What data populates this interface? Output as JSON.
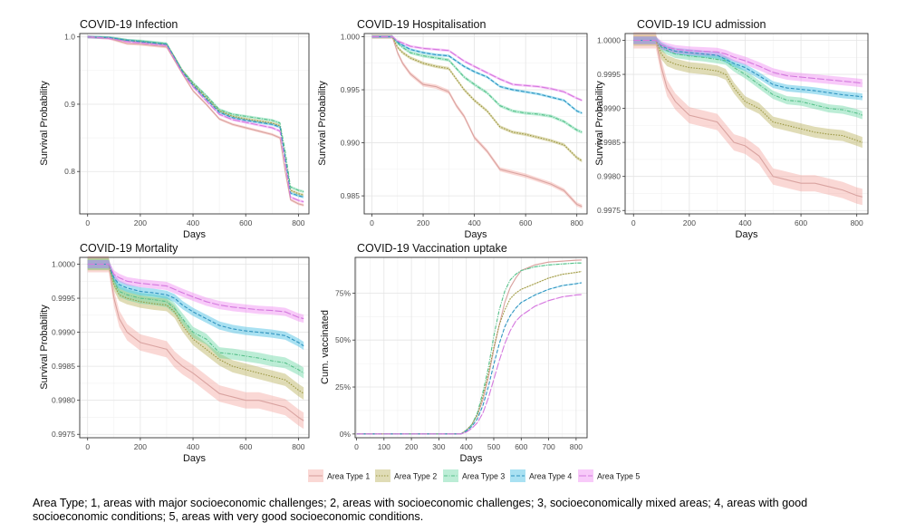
{
  "legend_title": "",
  "legend_labels": [
    "Area Type 1",
    "Area Type 2",
    "Area Type 3",
    "Area Type 4",
    "Area Type 5"
  ],
  "colors": {
    "area1": "#f3a29a",
    "area2": "#b5ac52",
    "area3": "#5fd59e",
    "area4": "#33b7e1",
    "area5": "#ef81f0",
    "line1": "#d9a3a0",
    "line2": "#9a9640",
    "line3": "#57c08a",
    "line4": "#2f93bf",
    "line5": "#d479de"
  },
  "caption": "Area Type; 1, areas with major socioeconomic challenges; 2, areas with socioeconomic challenges; 3, socioeconomically mixed areas; 4, areas with good socioeconomic conditions; 5, areas with very good socioeconomic conditions.",
  "chart_data": [
    {
      "id": "infection",
      "type": "line",
      "title": "COVID-19 Infection",
      "xlabel": "Days",
      "ylabel": "Survival Probability",
      "xlim": [
        -30,
        840
      ],
      "ylim": [
        0.737,
        1.005
      ],
      "xticks": [
        0,
        200,
        400,
        600,
        800
      ],
      "yticks": [
        0.8,
        0.9,
        1.0
      ],
      "ytick_labels": [
        "0.8",
        "0.9",
        "1.0"
      ],
      "x": [
        0,
        80,
        150,
        200,
        250,
        300,
        330,
        360,
        400,
        450,
        500,
        550,
        600,
        650,
        700,
        730,
        750,
        770,
        800,
        820
      ],
      "series": [
        {
          "name": "Area Type 1",
          "values": [
            1.0,
            0.998,
            0.99,
            0.989,
            0.987,
            0.985,
            0.965,
            0.945,
            0.92,
            0.9,
            0.878,
            0.87,
            0.865,
            0.86,
            0.855,
            0.85,
            0.8,
            0.758,
            0.752,
            0.75
          ],
          "band": 0.002
        },
        {
          "name": "Area Type 2",
          "values": [
            1.0,
            0.999,
            0.995,
            0.993,
            0.991,
            0.989,
            0.97,
            0.95,
            0.93,
            0.91,
            0.89,
            0.882,
            0.878,
            0.875,
            0.872,
            0.868,
            0.82,
            0.772,
            0.767,
            0.765
          ],
          "band": 0.002
        },
        {
          "name": "Area Type 3",
          "values": [
            1.0,
            0.999,
            0.995,
            0.994,
            0.992,
            0.99,
            0.97,
            0.95,
            0.932,
            0.913,
            0.892,
            0.885,
            0.882,
            0.879,
            0.876,
            0.872,
            0.83,
            0.777,
            0.772,
            0.77
          ],
          "band": 0.002
        },
        {
          "name": "Area Type 4",
          "values": [
            1.0,
            0.999,
            0.995,
            0.993,
            0.991,
            0.989,
            0.969,
            0.948,
            0.928,
            0.908,
            0.888,
            0.88,
            0.876,
            0.873,
            0.87,
            0.866,
            0.82,
            0.768,
            0.764,
            0.762
          ],
          "band": 0.002
        },
        {
          "name": "Area Type 5",
          "values": [
            1.0,
            0.998,
            0.993,
            0.991,
            0.989,
            0.987,
            0.967,
            0.946,
            0.926,
            0.905,
            0.885,
            0.877,
            0.873,
            0.869,
            0.865,
            0.86,
            0.812,
            0.762,
            0.757,
            0.755
          ],
          "band": 0.002
        }
      ]
    },
    {
      "id": "hospitalisation",
      "type": "line",
      "title": "COVID-19 Hospitalisation",
      "xlabel": "Days",
      "ylabel": "Survival Probability",
      "xlim": [
        -30,
        840
      ],
      "ylim": [
        0.9833,
        1.0003
      ],
      "xticks": [
        0,
        200,
        400,
        600,
        800
      ],
      "yticks": [
        0.985,
        0.99,
        0.995,
        1.0
      ],
      "ytick_labels": [
        "0.985",
        "0.990",
        "0.995",
        "1.000"
      ],
      "x": [
        0,
        80,
        100,
        120,
        150,
        200,
        250,
        300,
        330,
        360,
        400,
        450,
        500,
        550,
        600,
        650,
        700,
        750,
        800,
        820
      ],
      "series": [
        {
          "name": "Area Type 1",
          "values": [
            1.0,
            1.0,
            0.9985,
            0.9975,
            0.9965,
            0.9955,
            0.9953,
            0.9948,
            0.9935,
            0.9925,
            0.9905,
            0.9892,
            0.9875,
            0.9872,
            0.9869,
            0.9865,
            0.9861,
            0.9855,
            0.9842,
            0.984
          ],
          "band": 0.0002
        },
        {
          "name": "Area Type 2",
          "values": [
            1.0,
            1.0,
            0.999,
            0.9985,
            0.998,
            0.9975,
            0.9972,
            0.997,
            0.996,
            0.995,
            0.994,
            0.993,
            0.9915,
            0.991,
            0.9908,
            0.9905,
            0.9902,
            0.9898,
            0.9886,
            0.9883
          ],
          "band": 0.00015
        },
        {
          "name": "Area Type 3",
          "values": [
            1.0,
            1.0,
            0.9994,
            0.999,
            0.9985,
            0.9982,
            0.998,
            0.9978,
            0.997,
            0.9962,
            0.9955,
            0.9947,
            0.9935,
            0.993,
            0.9928,
            0.9927,
            0.9925,
            0.992,
            0.9912,
            0.991
          ],
          "band": 0.00015
        },
        {
          "name": "Area Type 4",
          "values": [
            1.0,
            1.0,
            0.9995,
            0.9992,
            0.9988,
            0.9985,
            0.9983,
            0.9982,
            0.9977,
            0.9972,
            0.9967,
            0.9962,
            0.9953,
            0.995,
            0.9948,
            0.9946,
            0.9943,
            0.994,
            0.993,
            0.9928
          ],
          "band": 0.00012
        },
        {
          "name": "Area Type 5",
          "values": [
            1.0,
            1.0,
            0.9996,
            0.9994,
            0.9991,
            0.9989,
            0.9988,
            0.9987,
            0.9982,
            0.9977,
            0.9972,
            0.9966,
            0.996,
            0.9955,
            0.9954,
            0.9953,
            0.9951,
            0.9948,
            0.9942,
            0.994
          ],
          "band": 0.00012
        }
      ]
    },
    {
      "id": "icu",
      "type": "line",
      "title": "COVID-19 ICU admission",
      "xlabel": "Days",
      "ylabel": "Survival Probability",
      "xlim": [
        -30,
        840
      ],
      "ylim": [
        0.99745,
        1.0001
      ],
      "xticks": [
        0,
        200,
        400,
        600,
        800
      ],
      "yticks": [
        0.9975,
        0.998,
        0.9985,
        0.999,
        0.9995,
        1.0
      ],
      "ytick_labels": [
        "0.9975",
        "0.9980",
        "0.9985",
        "0.9990",
        "0.9995",
        "1.0000"
      ],
      "x": [
        0,
        80,
        100,
        120,
        150,
        200,
        250,
        300,
        330,
        360,
        400,
        450,
        500,
        550,
        600,
        650,
        700,
        750,
        800,
        820
      ],
      "series": [
        {
          "name": "Area Type 1",
          "values": [
            1.0,
            1.0,
            0.9996,
            0.9993,
            0.9991,
            0.9989,
            0.99885,
            0.9988,
            0.99865,
            0.9985,
            0.99845,
            0.9983,
            0.998,
            0.99795,
            0.9979,
            0.9979,
            0.99785,
            0.9978,
            0.99772,
            0.9977
          ],
          "band": 0.00012
        },
        {
          "name": "Area Type 2",
          "values": [
            1.0,
            1.0,
            0.9998,
            0.9997,
            0.99965,
            0.9996,
            0.99958,
            0.99955,
            0.9995,
            0.9993,
            0.9991,
            0.999,
            0.9988,
            0.99875,
            0.9987,
            0.99865,
            0.99862,
            0.9986,
            0.99853,
            0.9985
          ],
          "band": 8e-05
        },
        {
          "name": "Area Type 3",
          "values": [
            1.0,
            1.0,
            0.9999,
            0.99985,
            0.9998,
            0.99977,
            0.99975,
            0.99972,
            0.9997,
            0.9996,
            0.9995,
            0.99935,
            0.9992,
            0.99912,
            0.9991,
            0.99905,
            0.999,
            0.99898,
            0.99893,
            0.9989
          ],
          "band": 6e-05
        },
        {
          "name": "Area Type 4",
          "values": [
            1.0,
            1.0,
            0.99992,
            0.99988,
            0.99984,
            0.99982,
            0.9998,
            0.99978,
            0.99972,
            0.99966,
            0.9996,
            0.99948,
            0.99935,
            0.9993,
            0.99928,
            0.99926,
            0.99923,
            0.9992,
            0.99918,
            0.99917
          ],
          "band": 5e-05
        },
        {
          "name": "Area Type 5",
          "values": [
            1.0,
            1.0,
            0.99993,
            0.9999,
            0.99987,
            0.99985,
            0.99984,
            0.99983,
            0.9998,
            0.99975,
            0.9997,
            0.99962,
            0.99953,
            0.99948,
            0.99946,
            0.99944,
            0.99942,
            0.9994,
            0.99938,
            0.99937
          ],
          "band": 6e-05
        }
      ]
    },
    {
      "id": "mortality",
      "type": "line",
      "title": "COVID-19 Mortality",
      "xlabel": "Days",
      "ylabel": "Survival Probability",
      "xlim": [
        -30,
        840
      ],
      "ylim": [
        0.99745,
        1.0001
      ],
      "xticks": [
        0,
        200,
        400,
        600,
        800
      ],
      "yticks": [
        0.9975,
        0.998,
        0.9985,
        0.999,
        0.9995,
        1.0
      ],
      "ytick_labels": [
        "0.9975",
        "0.9980",
        "0.9985",
        "0.9990",
        "0.9995",
        "1.0000"
      ],
      "x": [
        0,
        80,
        100,
        120,
        150,
        200,
        250,
        300,
        330,
        360,
        400,
        450,
        500,
        550,
        600,
        650,
        700,
        750,
        800,
        820
      ],
      "series": [
        {
          "name": "Area Type 1",
          "values": [
            1.0,
            1.0,
            0.9995,
            0.9992,
            0.999,
            0.99885,
            0.9988,
            0.99875,
            0.9986,
            0.9985,
            0.9984,
            0.99825,
            0.9981,
            0.99805,
            0.998,
            0.998,
            0.99795,
            0.9979,
            0.99775,
            0.9977
          ],
          "band": 0.00012
        },
        {
          "name": "Area Type 2",
          "values": [
            1.0,
            1.0,
            0.9997,
            0.99955,
            0.9995,
            0.99945,
            0.99942,
            0.9994,
            0.9993,
            0.9991,
            0.9989,
            0.99875,
            0.9986,
            0.9985,
            0.99845,
            0.9984,
            0.99835,
            0.9983,
            0.99815,
            0.9981
          ],
          "band": 9e-05
        },
        {
          "name": "Area Type 3",
          "values": [
            1.0,
            1.0,
            0.99975,
            0.9996,
            0.99955,
            0.9995,
            0.99948,
            0.99945,
            0.99935,
            0.9992,
            0.999,
            0.9989,
            0.9987,
            0.99868,
            0.99865,
            0.99862,
            0.99858,
            0.99855,
            0.99845,
            0.9984
          ],
          "band": 8e-05
        },
        {
          "name": "Area Type 4",
          "values": [
            1.0,
            1.0,
            0.9998,
            0.9997,
            0.99965,
            0.9996,
            0.99958,
            0.99955,
            0.9995,
            0.9994,
            0.9993,
            0.9992,
            0.9991,
            0.99905,
            0.99902,
            0.999,
            0.99898,
            0.99895,
            0.99885,
            0.9988
          ],
          "band": 6e-05
        },
        {
          "name": "Area Type 5",
          "values": [
            1.0,
            1.0,
            0.99985,
            0.9998,
            0.99975,
            0.99972,
            0.9997,
            0.99968,
            0.99963,
            0.99958,
            0.99952,
            0.99945,
            0.9994,
            0.99937,
            0.99935,
            0.99933,
            0.99932,
            0.9993,
            0.99922,
            0.9992
          ],
          "band": 6e-05
        }
      ]
    },
    {
      "id": "vaccination",
      "type": "line",
      "title": "COVID-19 Vaccination uptake",
      "xlabel": "Days",
      "ylabel": "Cum. vaccinated",
      "xlim": [
        -5,
        840
      ],
      "ylim": [
        -0.02,
        0.94
      ],
      "xticks": [
        0,
        100,
        200,
        300,
        400,
        500,
        600,
        700,
        800
      ],
      "yticks": [
        0,
        0.25,
        0.5,
        0.75
      ],
      "ytick_labels": [
        "0%",
        "25%",
        "50%",
        "75%"
      ],
      "x": [
        0,
        380,
        400,
        420,
        440,
        460,
        480,
        500,
        520,
        540,
        560,
        580,
        600,
        650,
        700,
        750,
        800,
        820
      ],
      "series": [
        {
          "name": "Area Type 1",
          "values": [
            0,
            0,
            0.02,
            0.05,
            0.1,
            0.18,
            0.3,
            0.45,
            0.58,
            0.7,
            0.78,
            0.83,
            0.87,
            0.9,
            0.915,
            0.92,
            0.925,
            0.926
          ],
          "band": 0.003
        },
        {
          "name": "Area Type 2",
          "values": [
            0,
            0,
            0.02,
            0.05,
            0.1,
            0.2,
            0.32,
            0.46,
            0.58,
            0.66,
            0.72,
            0.75,
            0.77,
            0.8,
            0.83,
            0.85,
            0.86,
            0.865
          ],
          "band": 0.003
        },
        {
          "name": "Area Type 3",
          "values": [
            0,
            0,
            0.02,
            0.05,
            0.11,
            0.22,
            0.35,
            0.52,
            0.66,
            0.76,
            0.82,
            0.85,
            0.87,
            0.89,
            0.9,
            0.905,
            0.91,
            0.91
          ],
          "band": 0.003
        },
        {
          "name": "Area Type 4",
          "values": [
            0,
            0,
            0.015,
            0.04,
            0.08,
            0.15,
            0.25,
            0.37,
            0.48,
            0.57,
            0.63,
            0.67,
            0.7,
            0.74,
            0.77,
            0.79,
            0.8,
            0.805
          ],
          "band": 0.003
        },
        {
          "name": "Area Type 5",
          "values": [
            0,
            0,
            0.01,
            0.03,
            0.06,
            0.11,
            0.19,
            0.29,
            0.39,
            0.48,
            0.55,
            0.6,
            0.63,
            0.68,
            0.71,
            0.73,
            0.74,
            0.742
          ],
          "band": 0.003
        }
      ]
    }
  ]
}
